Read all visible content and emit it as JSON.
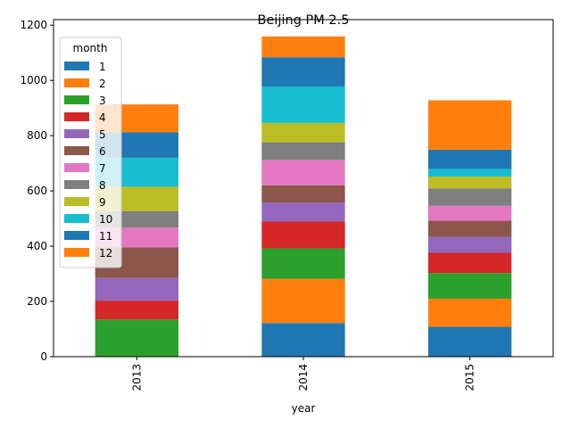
{
  "chart_data": {
    "type": "bar",
    "stacked": true,
    "title": "Beijing PM 2.5",
    "xlabel": "year",
    "ylabel": "",
    "categories": [
      "2013",
      "2014",
      "2015"
    ],
    "ylim": [
      0,
      1220
    ],
    "yticks": [
      0,
      200,
      400,
      600,
      800,
      1000,
      1200
    ],
    "legend": {
      "title": "month",
      "position": "upper-left"
    },
    "series": [
      {
        "name": "1",
        "color": "#1f77b4",
        "values": [
          0,
          122,
          108
        ]
      },
      {
        "name": "2",
        "color": "#ff7f0e",
        "values": [
          0,
          160,
          102
        ]
      },
      {
        "name": "3",
        "color": "#2ca02c",
        "values": [
          135,
          110,
          93
        ]
      },
      {
        "name": "4",
        "color": "#d62728",
        "values": [
          68,
          97,
          73
        ]
      },
      {
        "name": "5",
        "color": "#9467bd",
        "values": [
          82,
          69,
          58
        ]
      },
      {
        "name": "6",
        "color": "#8c564b",
        "values": [
          111,
          62,
          58
        ]
      },
      {
        "name": "7",
        "color": "#e377c2",
        "values": [
          71,
          92,
          54
        ]
      },
      {
        "name": "8",
        "color": "#7f7f7f",
        "values": [
          60,
          64,
          63
        ]
      },
      {
        "name": "9",
        "color": "#bcbd22",
        "values": [
          88,
          70,
          43
        ]
      },
      {
        "name": "10",
        "color": "#17becf",
        "values": [
          105,
          132,
          27
        ]
      },
      {
        "name": "11",
        "color": "#1f77b4",
        "values": [
          92,
          106,
          70
        ]
      },
      {
        "name": "12",
        "color": "#ff7f0e",
        "values": [
          101,
          75,
          179
        ]
      }
    ]
  }
}
